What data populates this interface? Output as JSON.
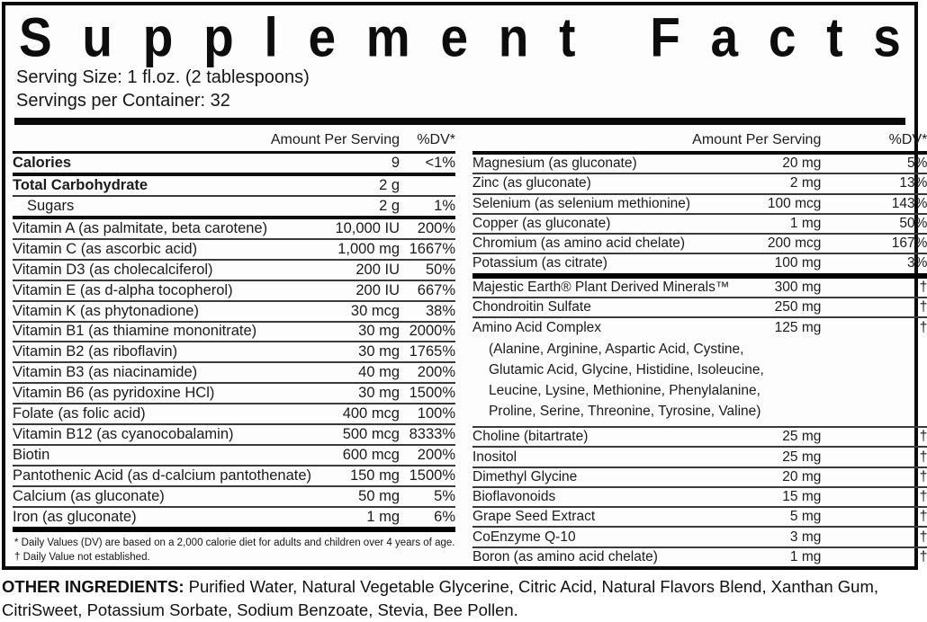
{
  "title": "Supplement Facts",
  "serving": {
    "size": "Serving Size: 1 fl.oz. (2 tablespoons)",
    "per_container": "Servings per Container: 32"
  },
  "table_header": {
    "amount": "Amount Per Serving",
    "dv": "%DV*"
  },
  "left_rows": [
    {
      "name": "Calories",
      "amount": "9",
      "dv": "<1%",
      "bold": true,
      "rule": "med"
    },
    {
      "name": "Total Carbohydrate",
      "amount": "2 g",
      "dv": "",
      "bold": true,
      "rule": "thin"
    },
    {
      "name": "Sugars",
      "amount": "2 g",
      "dv": "1%",
      "indent": true,
      "rule": "med"
    },
    {
      "name": "Vitamin A (as palmitate, beta carotene)",
      "amount": "10,000 IU",
      "dv": "200%",
      "rule": "thin"
    },
    {
      "name": "Vitamin C (as ascorbic acid)",
      "amount": "1,000 mg",
      "dv": "1667%",
      "rule": "thin"
    },
    {
      "name": "Vitamin D3 (as cholecalciferol)",
      "amount": "200 IU",
      "dv": "50%",
      "rule": "thin"
    },
    {
      "name": "Vitamin E (as d-alpha tocopherol)",
      "amount": "200 IU",
      "dv": "667%",
      "rule": "thin"
    },
    {
      "name": "Vitamin K (as phytonadione)",
      "amount": "30 mcg",
      "dv": "38%",
      "rule": "thin"
    },
    {
      "name": "Vitamin B1 (as thiamine mononitrate)",
      "amount": "30 mg",
      "dv": "2000%",
      "rule": "thin"
    },
    {
      "name": "Vitamin B2 (as riboflavin)",
      "amount": "30 mg",
      "dv": "1765%",
      "rule": "thin"
    },
    {
      "name": "Vitamin B3 (as niacinamide)",
      "amount": "40 mg",
      "dv": "200%",
      "rule": "thin"
    },
    {
      "name": "Vitamin B6 (as pyridoxine HCl)",
      "amount": "30 mg",
      "dv": "1500%",
      "rule": "thin"
    },
    {
      "name": "Folate (as folic acid)",
      "amount": "400 mcg",
      "dv": "100%",
      "rule": "thin"
    },
    {
      "name": "Vitamin B12 (as cyanocobalamin)",
      "amount": "500 mcg",
      "dv": "8333%",
      "rule": "thin"
    },
    {
      "name": "Biotin",
      "amount": "600 mcg",
      "dv": "200%",
      "rule": "thin"
    },
    {
      "name": "Pantothenic Acid (as d-calcium pantothenate)",
      "amount": "150 mg",
      "dv": "1500%",
      "rule": "thin"
    },
    {
      "name": "Calcium (as gluconate)",
      "amount": "50 mg",
      "dv": "5%",
      "rule": "thin"
    },
    {
      "name": "Iron (as gluconate)",
      "amount": "1 mg",
      "dv": "6%",
      "rule": "heavy"
    }
  ],
  "right_rows": [
    {
      "name": "Magnesium (as gluconate)",
      "amount": "20 mg",
      "dv": "5%",
      "rule": "thin"
    },
    {
      "name": "Zinc (as gluconate)",
      "amount": "2 mg",
      "dv": "13%",
      "rule": "thin"
    },
    {
      "name": "Selenium (as selenium methionine)",
      "amount": "100 mcg",
      "dv": "143%",
      "rule": "thin"
    },
    {
      "name": "Copper (as gluconate)",
      "amount": "1 mg",
      "dv": "50%",
      "rule": "thin"
    },
    {
      "name": "Chromium (as amino acid chelate)",
      "amount": "200 mcg",
      "dv": "167%",
      "rule": "thin"
    },
    {
      "name": "Potassium (as citrate)",
      "amount": "100 mg",
      "dv": "3%",
      "rule": "heavy"
    },
    {
      "name": "Majestic Earth® Plant Derived Minerals™",
      "amount": "300 mg",
      "dv": "†",
      "rule": "thin"
    },
    {
      "name": "Chondroitin Sulfate",
      "amount": "250 mg",
      "dv": "†",
      "rule": "thin"
    },
    {
      "name": "Amino Acid Complex",
      "amount": "125 mg",
      "dv": "†",
      "rule": "thin",
      "sub": "(Alanine, Arginine, Aspartic Acid, Cystine,\nGlutamic Acid, Glycine, Histidine, Isoleucine,\nLeucine, Lysine, Methionine, Phenylalanine,\nProline, Serine, Threonine, Tyrosine, Valine)"
    },
    {
      "name": "Choline (bitartrate)",
      "amount": "25 mg",
      "dv": "†",
      "rule": "thin"
    },
    {
      "name": "Inositol",
      "amount": "25 mg",
      "dv": "†",
      "rule": "thin"
    },
    {
      "name": "Dimethyl Glycine",
      "amount": "20 mg",
      "dv": "†",
      "rule": "thin"
    },
    {
      "name": "Bioflavonoids",
      "amount": "15 mg",
      "dv": "†",
      "rule": "thin"
    },
    {
      "name": "Grape Seed Extract",
      "amount": "5 mg",
      "dv": "†",
      "rule": "thin"
    },
    {
      "name": "CoEnzyme Q-10",
      "amount": "3 mg",
      "dv": "†",
      "rule": "thin"
    },
    {
      "name": "Boron (as amino acid chelate)",
      "amount": "1 mg",
      "dv": "†",
      "rule": "none"
    }
  ],
  "footnotes": {
    "dv_note": "* Daily Values (DV) are based on a 2,000 calorie diet for adults and children over 4 years of age.",
    "dagger_note": "† Daily Value not established."
  },
  "other_ingredients": {
    "label": "OTHER INGREDIENTS:",
    "text": "Purified Water, Natural Vegetable Glycerine, Citric Acid, Natural Flavors Blend, Xanthan Gum, CitriSweet, Potassium Sorbate, Sodium Benzoate, Stevia, Bee Pollen."
  }
}
